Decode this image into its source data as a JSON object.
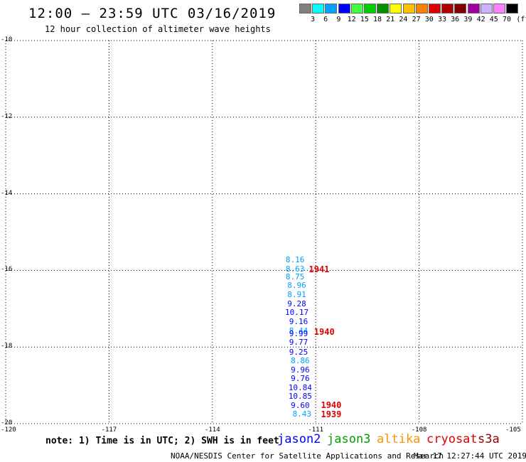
{
  "title": "12:00 – 23:59 UTC 03/16/2019",
  "subtitle": "12 hour collection of altimeter wave heights",
  "legend": {
    "unit": "(ft)",
    "bins": [
      {
        "label": "3",
        "color": "#7f7f7f"
      },
      {
        "label": "6",
        "color": "#00ffff"
      },
      {
        "label": "9",
        "color": "#00a0ff"
      },
      {
        "label": "12",
        "color": "#0000ff"
      },
      {
        "label": "15",
        "color": "#40ff40"
      },
      {
        "label": "18",
        "color": "#00d000"
      },
      {
        "label": "21",
        "color": "#009000"
      },
      {
        "label": "24",
        "color": "#ffff00"
      },
      {
        "label": "27",
        "color": "#ffc000"
      },
      {
        "label": "30",
        "color": "#ff8000"
      },
      {
        "label": "33",
        "color": "#e00000"
      },
      {
        "label": "36",
        "color": "#b00000"
      },
      {
        "label": "39",
        "color": "#800000"
      },
      {
        "label": "42",
        "color": "#a000a0"
      },
      {
        "label": "45",
        "color": "#c8b4ff"
      },
      {
        "label": "70",
        "color": "#ff80ff"
      },
      {
        "label": "",
        "color": "#000000"
      }
    ]
  },
  "axes": {
    "lat_labels": [
      "-10",
      "-12",
      "-14",
      "-16",
      "-18",
      "-20"
    ],
    "lon_labels": [
      "-120",
      "-117",
      "-114",
      "-111",
      "-108",
      "-105"
    ],
    "lat_values": [
      -10,
      -12,
      -14,
      -16,
      -18,
      -20
    ],
    "lon_values": [
      -120,
      -117,
      -114,
      -111,
      -108,
      -105
    ],
    "lon_range": [
      -120,
      -105
    ],
    "lat_range": [
      -20,
      -10
    ]
  },
  "observations": [
    {
      "text": "8.16",
      "lat": -15.74,
      "lon": -111.6,
      "color": "#00a0ff"
    },
    {
      "text": "8.63",
      "lat": -15.97,
      "lon": -111.6,
      "color": "#00a0ff"
    },
    {
      "text": "8.75",
      "lat": -16.17,
      "lon": -111.6,
      "color": "#00a0ff"
    },
    {
      "text": "8.96",
      "lat": -16.41,
      "lon": -111.55,
      "color": "#00a0ff"
    },
    {
      "text": "8.91",
      "lat": -16.64,
      "lon": -111.55,
      "color": "#00a0ff"
    },
    {
      "text": "9.28",
      "lat": -16.88,
      "lon": -111.55,
      "color": "#0000ff"
    },
    {
      "text": "10.17",
      "lat": -17.11,
      "lon": -111.55,
      "color": "#0000ff"
    },
    {
      "text": "9.16",
      "lat": -17.35,
      "lon": -111.5,
      "color": "#0000ff"
    },
    {
      "text": "8.44",
      "lat": -17.58,
      "lon": -111.5,
      "color": "#00a0ff"
    },
    {
      "text": "9.99",
      "lat": -17.67,
      "lon": -111.5,
      "color": "#0000ff"
    },
    {
      "text": "9.77",
      "lat": -17.89,
      "lon": -111.5,
      "color": "#0000ff"
    },
    {
      "text": "9.25",
      "lat": -18.14,
      "lon": -111.5,
      "color": "#0000ff"
    },
    {
      "text": "8.86",
      "lat": -18.37,
      "lon": -111.45,
      "color": "#00a0ff"
    },
    {
      "text": "9.96",
      "lat": -18.61,
      "lon": -111.45,
      "color": "#0000ff"
    },
    {
      "text": "9.76",
      "lat": -18.83,
      "lon": -111.45,
      "color": "#0000ff"
    },
    {
      "text": "10.84",
      "lat": -19.07,
      "lon": -111.45,
      "color": "#0000ff"
    },
    {
      "text": "10.85",
      "lat": -19.29,
      "lon": -111.45,
      "color": "#0000ff"
    },
    {
      "text": "9.60",
      "lat": -19.54,
      "lon": -111.45,
      "color": "#0000ff"
    },
    {
      "text": "8.43",
      "lat": -19.76,
      "lon": -111.4,
      "color": "#00a0ff"
    }
  ],
  "passes": [
    {
      "text": "1941",
      "lat": -15.97,
      "lon": -111.2
    },
    {
      "text": "1940",
      "lat": -17.6,
      "lon": -111.05
    },
    {
      "text": "1940",
      "lat": -19.52,
      "lon": -110.85
    },
    {
      "text": "1939",
      "lat": -19.76,
      "lon": -110.85
    }
  ],
  "note": "note: 1) Time is in UTC; 2) SWH is in feet",
  "satellites": [
    {
      "name": "jason2",
      "color": "#0000ff"
    },
    {
      "name": "jason3",
      "color": "#00a000"
    },
    {
      "name": "altika",
      "color": "#ff9000"
    },
    {
      "name": "cryosat",
      "color": "#e00000"
    },
    {
      "name": "s3a",
      "color": "#900000"
    }
  ],
  "credit": "NOAA/NESDIS Center for Satellite Applications and Research",
  "timestamp": "Mar 17 12:27:44 UTC 2019"
}
